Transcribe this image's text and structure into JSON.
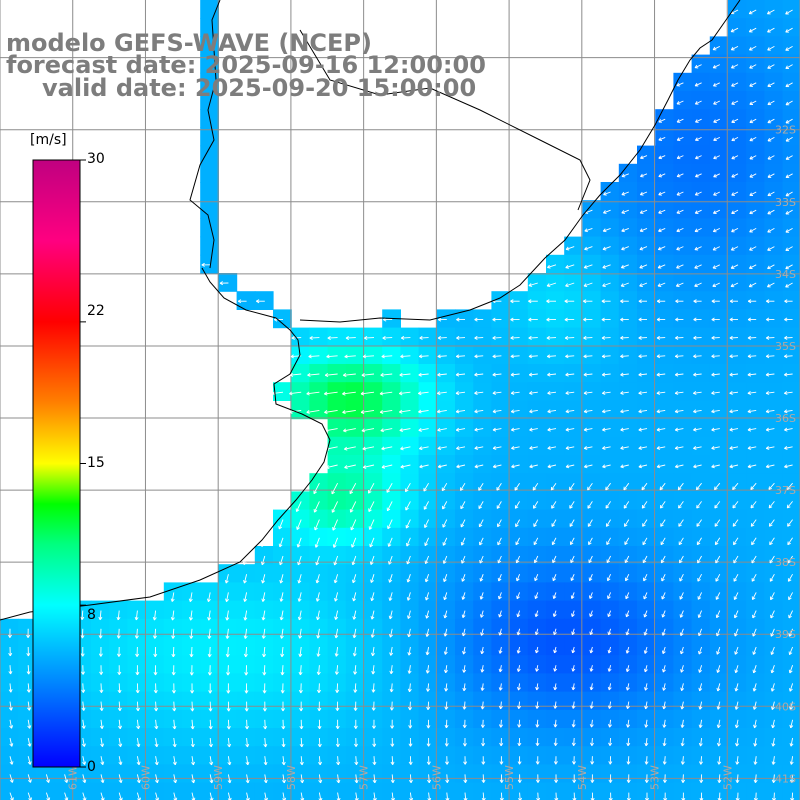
{
  "title": {
    "line1": "modelo GEFS-WAVE (NCEP)",
    "line2": "forecast date: 2025-09-16 12:00:00",
    "line3": "valid date: 2025-09-20 15:00:00"
  },
  "colorbar": {
    "unit": "[m/s]",
    "ticks": [
      "30",
      "22",
      "15",
      "8",
      "0"
    ],
    "tick_values": [
      30,
      22,
      15,
      8,
      0
    ],
    "stops": [
      {
        "v": 0,
        "color": "#0000ff"
      },
      {
        "v": 4,
        "color": "#0080ff"
      },
      {
        "v": 8,
        "color": "#00ffff"
      },
      {
        "v": 11,
        "color": "#00ff80"
      },
      {
        "v": 13,
        "color": "#00ff00"
      },
      {
        "v": 15,
        "color": "#ffff00"
      },
      {
        "v": 18,
        "color": "#ff8000"
      },
      {
        "v": 22,
        "color": "#ff0000"
      },
      {
        "v": 26,
        "color": "#ff0080"
      },
      {
        "v": 30,
        "color": "#c00080"
      }
    ]
  },
  "lat_labels": [
    "32S",
    "33S",
    "34S",
    "35S",
    "36S",
    "37S",
    "38S",
    "39S",
    "40S",
    "41S"
  ],
  "lon_labels": [
    "61W",
    "60W",
    "59W",
    "58W",
    "57W",
    "56W",
    "55W",
    "54W",
    "53W",
    "52W"
  ],
  "extent": {
    "lon_min": -62,
    "lon_max": -51,
    "lat_min": -41.3,
    "lat_max": -30.2
  },
  "colors": {
    "grid": "#8c8c8c",
    "coast": "#000000",
    "arrow": "#ffffff",
    "label": "#aaaaaa"
  }
}
